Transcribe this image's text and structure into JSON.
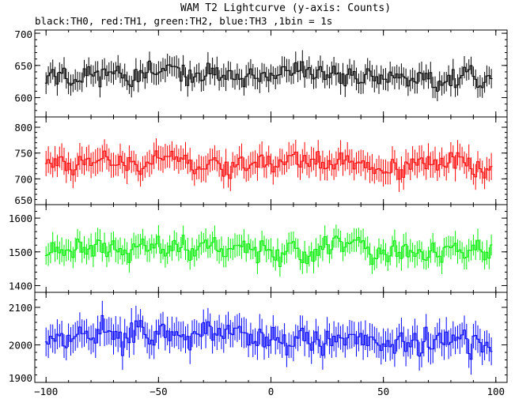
{
  "chart_data": {
    "type": "line",
    "title": "WAM T2 Lightcurve (y-axis: Counts)",
    "subtitle": "black:TH0, red:TH1, green:TH2, blue:TH3 ,1bin = 1s",
    "xlabel": "",
    "ylabel": "",
    "xlim": [
      -105,
      105
    ],
    "x_ticks": [
      -100,
      -50,
      0,
      50,
      100
    ],
    "x_tick_labels": [
      "−100",
      "−50",
      "0",
      "50",
      "100"
    ],
    "x_range": [
      -100,
      98
    ],
    "bin": 1,
    "grid": false,
    "panels": [
      {
        "name": "TH0",
        "color": "#000000",
        "ylim": [
          570,
          705
        ],
        "y_ticks": [
          600,
          650,
          700
        ],
        "y_tick_labels": [
          "600",
          "650",
          "700"
        ],
        "mean": 636,
        "amp": 42,
        "err": 16,
        "trend": -0.07,
        "seed": 11
      },
      {
        "name": "TH1",
        "color": "#ff0000",
        "ylim": [
          650,
          820
        ],
        "y_ticks": [
          650,
          700,
          750,
          800
        ],
        "y_tick_labels": [
          "650",
          "700",
          "750",
          "800"
        ],
        "mean": 737,
        "amp": 55,
        "err": 23,
        "trend": -0.12,
        "seed": 23
      },
      {
        "name": "TH2",
        "color": "#00ee00",
        "ylim": [
          1380,
          1640
        ],
        "y_ticks": [
          1400,
          1500,
          1600
        ],
        "y_tick_labels": [
          "1400",
          "1500",
          "1600"
        ],
        "mean": 1515,
        "amp": 90,
        "err": 32,
        "trend": -0.25,
        "seed": 37
      },
      {
        "name": "TH3",
        "color": "#0000ff",
        "ylim": [
          1900,
          2140
        ],
        "y_ticks": [
          1900,
          2000,
          2100
        ],
        "y_tick_labels": [
          "1900",
          "2000",
          "2100"
        ],
        "mean": 2035,
        "amp": 95,
        "err": 36,
        "trend": -0.3,
        "seed": 53
      }
    ]
  }
}
